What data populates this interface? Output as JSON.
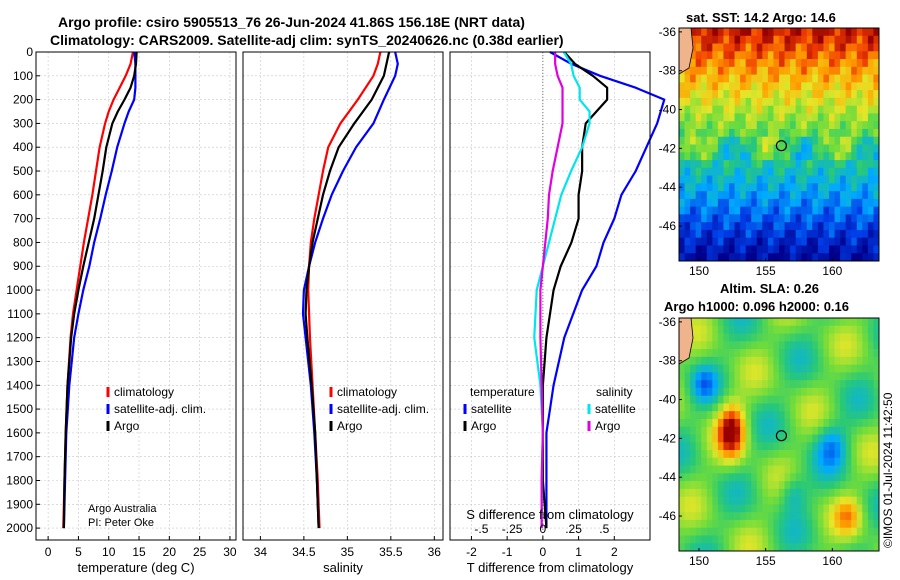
{
  "titles": {
    "line1": "Argo profile: csiro 5905513_76 26-Jun-2024 41.86S 156.18E (NRT data)",
    "line2": "Climatology: CARS2009. Satellite-adj clim: synTS_20240626.nc (0.38d earlier)",
    "sst": "sat. SST: 14.2 Argo: 14.6",
    "sla1": "Altim. SLA: 0.26",
    "sla2": "Argo h1000: 0.096 h2000: 0.16"
  },
  "credit": {
    "line1": "Argo Australia",
    "line2": "PI: Peter Oke"
  },
  "watermark": "©IMOS 01-Jul-2024 11:42:50",
  "colors": {
    "climatology": "#ff0000",
    "satellite": "#0000ff",
    "argo": "#000000",
    "sat_salinity": "#00e5ee",
    "argo_salinity": "#e000e0"
  },
  "chart_data": [
    {
      "type": "line",
      "title": "temperature profile",
      "xlabel": "temperature (deg C)",
      "ylabel": "pressure",
      "xlim": [
        -2,
        31
      ],
      "ylim": [
        2050,
        0
      ],
      "xticks": [
        0,
        5,
        10,
        15,
        20,
        25,
        30
      ],
      "yticks": [
        0,
        100,
        200,
        300,
        400,
        500,
        600,
        700,
        800,
        900,
        1000,
        1100,
        1200,
        1300,
        1400,
        1500,
        1600,
        1700,
        1800,
        1900,
        2000
      ],
      "grid": true,
      "legend": [
        "climatology",
        "satellite-adj. clim.",
        "Argo"
      ],
      "legend_position": "lower-right",
      "series": [
        {
          "name": "climatology",
          "color": "#ff0000",
          "depth": [
            0,
            50,
            100,
            150,
            200,
            250,
            300,
            400,
            500,
            600,
            700,
            800,
            900,
            1000,
            1100,
            1200,
            1400,
            1600,
            1800,
            2000
          ],
          "values": [
            14.0,
            13.6,
            12.8,
            11.8,
            10.8,
            10.0,
            9.4,
            8.5,
            7.9,
            7.3,
            6.6,
            5.9,
            5.3,
            4.7,
            4.1,
            3.7,
            3.2,
            2.9,
            2.7,
            2.5
          ]
        },
        {
          "name": "satellite-adj. clim.",
          "color": "#0000ff",
          "depth": [
            0,
            50,
            100,
            150,
            200,
            250,
            300,
            400,
            500,
            600,
            700,
            800,
            900,
            1000,
            1100,
            1200,
            1400,
            1600,
            1800,
            2000
          ],
          "values": [
            14.2,
            14.4,
            14.4,
            14.4,
            14.2,
            13.3,
            12.6,
            11.4,
            10.5,
            9.5,
            8.6,
            7.6,
            6.8,
            5.8,
            5.0,
            4.3,
            3.5,
            3.0,
            2.8,
            2.6
          ]
        },
        {
          "name": "Argo",
          "color": "#000000",
          "depth": [
            0,
            50,
            100,
            150,
            200,
            250,
            300,
            400,
            500,
            600,
            700,
            800,
            900,
            1000,
            1100,
            1200,
            1400,
            1600,
            1800,
            2000
          ],
          "values": [
            14.6,
            14.5,
            14.2,
            13.6,
            12.6,
            11.5,
            10.6,
            9.6,
            9.0,
            8.3,
            7.6,
            6.7,
            5.8,
            5.0,
            4.3,
            3.8,
            3.2,
            2.9,
            2.7,
            2.6
          ]
        }
      ]
    },
    {
      "type": "line",
      "title": "salinity profile",
      "xlabel": "salinity",
      "ylabel": "pressure",
      "xlim": [
        33.8,
        36.1
      ],
      "ylim": [
        2050,
        0
      ],
      "xticks": [
        34,
        34.5,
        35,
        35.5,
        36
      ],
      "grid": true,
      "legend": [
        "climatology",
        "satellite-adj. clim.",
        "Argo"
      ],
      "legend_position": "lower-right",
      "series": [
        {
          "name": "climatology",
          "color": "#ff0000",
          "depth": [
            0,
            50,
            100,
            200,
            300,
            400,
            500,
            600,
            700,
            800,
            900,
            1000,
            1100,
            1200,
            1400,
            1600,
            1800,
            2000
          ],
          "values": [
            35.38,
            35.35,
            35.3,
            35.12,
            34.92,
            34.78,
            34.72,
            34.67,
            34.62,
            34.58,
            34.56,
            34.55,
            34.56,
            34.57,
            34.6,
            34.63,
            34.66,
            34.68
          ]
        },
        {
          "name": "satellite-adj. clim.",
          "color": "#0000ff",
          "depth": [
            0,
            50,
            100,
            200,
            300,
            400,
            500,
            600,
            700,
            800,
            900,
            1000,
            1100,
            1200,
            1400,
            1600,
            1800,
            2000
          ],
          "values": [
            35.55,
            35.58,
            35.55,
            35.42,
            35.3,
            35.1,
            34.95,
            34.82,
            34.72,
            34.63,
            34.56,
            34.5,
            34.49,
            34.52,
            34.58,
            34.62,
            34.65,
            34.67
          ]
        },
        {
          "name": "Argo",
          "color": "#000000",
          "depth": [
            0,
            50,
            100,
            200,
            300,
            400,
            500,
            600,
            700,
            800,
            900,
            1000,
            1100,
            1200,
            1400,
            1600,
            1800,
            2000
          ],
          "values": [
            35.48,
            35.45,
            35.42,
            35.28,
            35.08,
            34.9,
            34.8,
            34.72,
            34.66,
            34.6,
            34.56,
            34.53,
            34.52,
            34.54,
            34.59,
            34.63,
            34.65,
            34.67
          ]
        }
      ]
    },
    {
      "type": "line",
      "title": "difference from climatology",
      "xlabel": "T difference from climatology",
      "xlabel2": "S difference from climatology",
      "xlim": [
        -2.6,
        3.0
      ],
      "ylim": [
        2050,
        0
      ],
      "xticks": [
        -2,
        -1,
        0,
        1,
        2
      ],
      "xticks2": [
        -0.5,
        -0.25,
        0,
        0.25,
        0.5
      ],
      "grid": true,
      "legend_titles": [
        "temperature",
        "salinity"
      ],
      "legend": [
        "satellite",
        "Argo",
        "satellite",
        "Argo"
      ],
      "series": [
        {
          "name": "temperature satellite",
          "color": "#0000ff",
          "depth": [
            0,
            50,
            100,
            150,
            200,
            250,
            300,
            400,
            500,
            600,
            700,
            800,
            900,
            1000,
            1200,
            1400,
            1600,
            1800,
            2000
          ],
          "values": [
            0.2,
            0.8,
            1.6,
            2.6,
            3.4,
            3.3,
            3.2,
            2.9,
            2.6,
            2.2,
            2.0,
            1.7,
            1.5,
            1.1,
            0.6,
            0.3,
            0.1,
            0.1,
            0.1
          ]
        },
        {
          "name": "temperature Argo",
          "color": "#000000",
          "depth": [
            0,
            50,
            100,
            150,
            200,
            250,
            300,
            400,
            500,
            600,
            700,
            800,
            900,
            1000,
            1200,
            1400,
            1600,
            1800,
            2000
          ],
          "values": [
            0.6,
            0.9,
            1.4,
            1.8,
            1.8,
            1.5,
            1.2,
            1.1,
            1.1,
            1.0,
            1.0,
            0.8,
            0.5,
            0.3,
            0.1,
            0.0,
            0.0,
            0.0,
            0.1
          ]
        },
        {
          "name": "salinity satellite",
          "color": "#00e5ee",
          "depth": [
            0,
            50,
            100,
            150,
            200,
            250,
            300,
            400,
            500,
            600,
            700,
            800,
            900,
            1000,
            1200,
            1400,
            1600,
            1800,
            2000
          ],
          "values": [
            0.17,
            0.23,
            0.25,
            0.3,
            0.3,
            0.38,
            0.38,
            0.32,
            0.23,
            0.15,
            0.1,
            0.05,
            0.0,
            -0.05,
            -0.07,
            -0.02,
            0.0,
            -0.01,
            -0.01
          ]
        },
        {
          "name": "salinity Argo",
          "color": "#e000e0",
          "depth": [
            0,
            50,
            100,
            150,
            200,
            250,
            300,
            400,
            500,
            600,
            700,
            800,
            900,
            1000,
            1200,
            1400,
            1600,
            1800,
            2000
          ],
          "values": [
            0.1,
            0.1,
            0.12,
            0.16,
            0.16,
            0.16,
            0.16,
            0.12,
            0.08,
            0.05,
            0.04,
            0.02,
            0.0,
            -0.02,
            -0.02,
            -0.01,
            0.0,
            -0.01,
            -0.01
          ]
        }
      ]
    },
    {
      "type": "heatmap",
      "title": "sat. SST: 14.2 Argo: 14.6",
      "xlim": [
        148.5,
        163.5
      ],
      "ylim": [
        -47.8,
        -35.8
      ],
      "xticks": [
        150,
        155,
        160
      ],
      "yticks": [
        -36,
        -38,
        -40,
        -42,
        -44,
        -46
      ],
      "marker": {
        "lon": 156.18,
        "lat": -41.86
      }
    },
    {
      "type": "heatmap",
      "title": "Altim. SLA: 0.26",
      "xlim": [
        148.5,
        163.5
      ],
      "ylim": [
        -47.8,
        -35.8
      ],
      "xticks": [
        150,
        155,
        160
      ],
      "yticks": [
        -36,
        -38,
        -40,
        -42,
        -44,
        -46
      ],
      "marker": {
        "lon": 156.18,
        "lat": -41.86
      }
    }
  ]
}
